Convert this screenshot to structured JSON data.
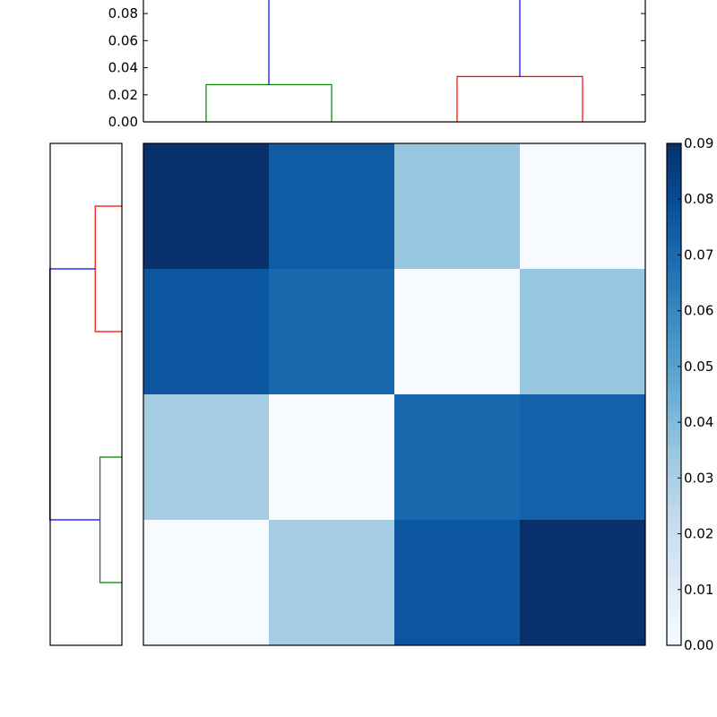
{
  "chart_data": [
    {
      "type": "dendrogram",
      "panel": "top",
      "orientation": "top",
      "ylim": [
        0,
        0.09
      ],
      "yticks": [
        0.0,
        0.02,
        0.04,
        0.06,
        0.08
      ],
      "ytick_labels": [
        "0.00",
        "0.02",
        "0.04",
        "0.06",
        "0.08"
      ],
      "leaf_positions": [
        5,
        15,
        25,
        35
      ],
      "xlim": [
        0,
        40
      ],
      "links": [
        {
          "x": [
            5,
            5,
            15,
            15
          ],
          "y": [
            0,
            0.0275,
            0.0275,
            0
          ],
          "color": "#008000"
        },
        {
          "x": [
            25,
            25,
            35,
            35
          ],
          "y": [
            0,
            0.0335,
            0.0335,
            0
          ],
          "color": "#ff0000"
        },
        {
          "x": [
            10,
            10,
            30,
            30
          ],
          "y": [
            0.0275,
            0.0905,
            0.0905,
            0.0335
          ],
          "color": "#0000ff"
        }
      ]
    },
    {
      "type": "dendrogram",
      "panel": "left",
      "orientation": "left",
      "xlim": [
        0,
        0.09
      ],
      "leaf_positions": [
        5,
        15,
        25,
        35
      ],
      "ylim": [
        0,
        40
      ],
      "links": [
        {
          "y": [
            5,
            5,
            15,
            15
          ],
          "x": [
            0,
            0.0275,
            0.0275,
            0
          ],
          "color": "#008000"
        },
        {
          "y": [
            25,
            25,
            35,
            35
          ],
          "x": [
            0,
            0.0335,
            0.0335,
            0
          ],
          "color": "#ff0000"
        },
        {
          "y": [
            10,
            10,
            30,
            30
          ],
          "x": [
            0.0275,
            0.0905,
            0.0905,
            0.0335
          ],
          "color": "#0000ff"
        }
      ]
    },
    {
      "type": "heatmap",
      "panel": "matrix",
      "colormap": "Blues",
      "vmin": 0,
      "vmax": 0.09,
      "z": [
        [
          0.09,
          0.075,
          0.035,
          0.0
        ],
        [
          0.077,
          0.071,
          0.0,
          0.035
        ],
        [
          0.032,
          0.0,
          0.071,
          0.073
        ],
        [
          0.0,
          0.032,
          0.077,
          0.09
        ]
      ]
    },
    {
      "type": "colorbar",
      "panel": "colorbar",
      "colormap": "Blues",
      "range": [
        0,
        0.09
      ],
      "ticks": [
        0.0,
        0.01,
        0.02,
        0.03,
        0.04,
        0.05,
        0.06,
        0.07,
        0.08,
        0.09
      ],
      "tick_labels": [
        "0.00",
        "0.01",
        "0.02",
        "0.03",
        "0.04",
        "0.05",
        "0.06",
        "0.07",
        "0.08",
        "0.09"
      ]
    }
  ],
  "colors": {
    "cluster_a": "#008000",
    "cluster_b": "#ff0000",
    "above_threshold": "#0000ff"
  }
}
